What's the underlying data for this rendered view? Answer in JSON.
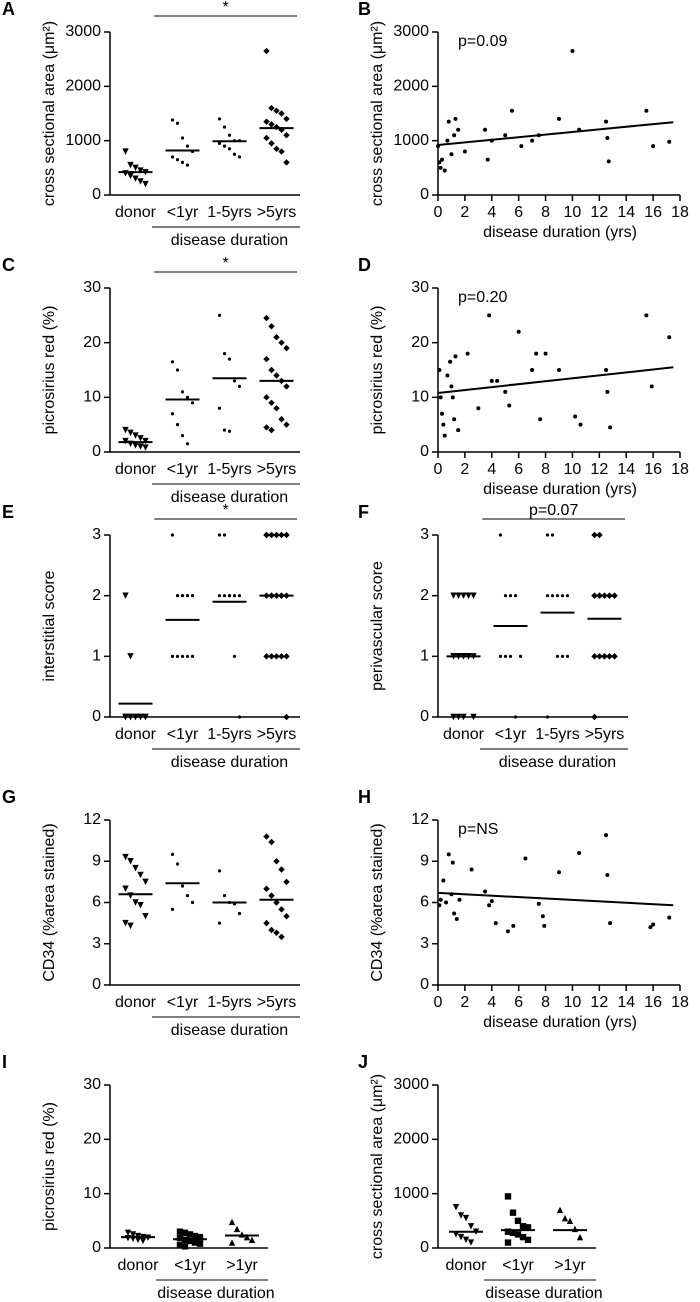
{
  "chart_data": [
    {
      "type": "strip",
      "panel": "A",
      "ylabel": "cross sectional area (μm²)",
      "categories": [
        "donor",
        "<1yr",
        "1-5yrs",
        ">5yrs"
      ],
      "values": [
        [
          800,
          550,
          500,
          450,
          420,
          400,
          350,
          300,
          250,
          200
        ],
        [
          1380,
          1320,
          1050,
          900,
          800,
          700,
          650,
          600,
          550
        ],
        [
          1400,
          1250,
          1100,
          1000,
          1000,
          950,
          900,
          850,
          750,
          700
        ],
        [
          2650,
          1600,
          1550,
          1500,
          1400,
          1350,
          1300,
          1250,
          1200,
          1100,
          1050,
          950,
          850,
          800,
          600
        ]
      ],
      "means": [
        420,
        820,
        990,
        1230
      ],
      "markers": [
        "triangle-down",
        "dot",
        "dot",
        "diamond"
      ],
      "ylim": [
        0,
        3000
      ],
      "yticks": [
        0,
        1000,
        2000,
        3000
      ],
      "significance": "*",
      "group_label": "disease duration"
    },
    {
      "type": "scatter",
      "panel": "B",
      "ylabel": "cross sectional area (μm²)",
      "xlabel": "disease duration (yrs)",
      "x": [
        0,
        0.1,
        0.2,
        0.3,
        0.5,
        0.7,
        0.8,
        1,
        1.2,
        1.3,
        1.5,
        2,
        3.5,
        3.7,
        4,
        5,
        5.5,
        6.2,
        7,
        7.5,
        9,
        10,
        10.5,
        12.5,
        12.6,
        12.7,
        15.5,
        16,
        17.2
      ],
      "y": [
        900,
        600,
        500,
        650,
        450,
        1000,
        1350,
        750,
        1100,
        1400,
        1200,
        800,
        1200,
        650,
        1000,
        1100,
        1550,
        900,
        1000,
        1100,
        1400,
        2650,
        1200,
        1350,
        1050,
        620,
        1550,
        900,
        980
      ],
      "fit": {
        "x": [
          0,
          17.5
        ],
        "y": [
          920,
          1340
        ]
      },
      "annotation": "p=0.09",
      "xlim": [
        0,
        18
      ],
      "xticks": [
        0,
        2,
        4,
        6,
        8,
        10,
        12,
        14,
        16,
        18
      ],
      "ylim": [
        0,
        3000
      ],
      "yticks": [
        0,
        1000,
        2000,
        3000
      ]
    },
    {
      "type": "strip",
      "panel": "C",
      "ylabel": "picrosirius red (%)",
      "categories": [
        "donor",
        "<1yr",
        "1-5yrs",
        ">5yrs"
      ],
      "values": [
        [
          4,
          3.5,
          3,
          2.5,
          2,
          2,
          1.5,
          1.2,
          1,
          0.8
        ],
        [
          16.5,
          15,
          11,
          10,
          9,
          7,
          5,
          3,
          1.5
        ],
        [
          25,
          18,
          17,
          13,
          12,
          8,
          4,
          3.8
        ],
        [
          24.5,
          23,
          21,
          20,
          19,
          17,
          15,
          14,
          13,
          12,
          10,
          9,
          8,
          6,
          5,
          4.5,
          4
        ]
      ],
      "means": [
        1.8,
        9.6,
        13.5,
        13
      ],
      "markers": [
        "triangle-down",
        "dot",
        "dot",
        "diamond"
      ],
      "ylim": [
        0,
        30
      ],
      "yticks": [
        0,
        10,
        20,
        30
      ],
      "significance": "*",
      "group_label": "disease duration"
    },
    {
      "type": "scatter",
      "panel": "D",
      "ylabel": "picrosirius red (%)",
      "xlabel": "disease duration (yrs)",
      "x": [
        0.1,
        0.2,
        0.3,
        0.4,
        0.5,
        0.7,
        0.9,
        1,
        1.1,
        1.2,
        1.3,
        1.5,
        2.2,
        3,
        3.8,
        4,
        4.4,
        5,
        5.3,
        6,
        7,
        7.3,
        7.6,
        8,
        9,
        10.2,
        10.6,
        12.5,
        12.6,
        12.8,
        15.5,
        15.9,
        17.2
      ],
      "y": [
        15,
        10,
        7,
        5,
        3,
        14,
        16.5,
        12,
        10,
        6,
        17.5,
        4,
        18,
        8,
        25,
        13,
        13,
        11,
        8.5,
        22,
        15,
        18,
        6,
        18,
        15,
        6.5,
        5,
        15,
        11,
        4.5,
        25,
        12,
        21
      ],
      "fit": {
        "x": [
          0,
          17.5
        ],
        "y": [
          10.8,
          15.5
        ]
      },
      "annotation": "p=0.20",
      "xlim": [
        0,
        18
      ],
      "xticks": [
        0,
        2,
        4,
        6,
        8,
        10,
        12,
        14,
        16,
        18
      ],
      "ylim": [
        0,
        30
      ],
      "yticks": [
        0,
        10,
        20,
        30
      ]
    },
    {
      "type": "strip",
      "panel": "E",
      "ylabel": "interstitial score",
      "categories": [
        "donor",
        "<1yr",
        "1-5yrs",
        ">5yrs"
      ],
      "values": [
        [
          2,
          1,
          0,
          0,
          0,
          0,
          0,
          0,
          0,
          0,
          0,
          0
        ],
        [
          3,
          2,
          2,
          2,
          2,
          1,
          1,
          1,
          1,
          1
        ],
        [
          3,
          3,
          2,
          2,
          2,
          2,
          2,
          2,
          1,
          0
        ],
        [
          3,
          3,
          3,
          3,
          3,
          3,
          2,
          2,
          2,
          2,
          2,
          2,
          2,
          2,
          1,
          1,
          1,
          1,
          1,
          0
        ]
      ],
      "means": [
        0.22,
        1.6,
        1.9,
        2.0
      ],
      "markers": [
        "triangle-down",
        "dot",
        "dot",
        "diamond"
      ],
      "ylim": [
        0,
        3
      ],
      "yticks": [
        0,
        1,
        2,
        3
      ],
      "significance": "*",
      "group_label": "disease duration"
    },
    {
      "type": "strip",
      "panel": "F",
      "ylabel": "perivascular score",
      "categories": [
        "donor",
        "<1yr",
        "1-5yrs",
        ">5yrs"
      ],
      "values": [
        [
          2,
          2,
          2,
          2,
          2,
          1,
          1,
          1,
          1,
          1,
          1,
          1,
          1,
          1,
          0,
          0,
          0,
          0
        ],
        [
          3,
          2,
          2,
          2,
          1,
          1,
          1,
          1,
          0
        ],
        [
          3,
          3,
          2,
          2,
          2,
          2,
          2,
          1,
          1,
          1,
          0
        ],
        [
          3,
          3,
          2,
          2,
          2,
          2,
          2,
          2,
          2,
          2,
          2,
          2,
          1,
          1,
          1,
          1,
          1,
          1,
          1,
          1,
          0
        ]
      ],
      "means": [
        1.0,
        1.5,
        1.72,
        1.62
      ],
      "markers": [
        "triangle-down",
        "dot",
        "dot",
        "diamond"
      ],
      "ylim": [
        0,
        3
      ],
      "yticks": [
        0,
        1,
        2,
        3
      ],
      "significance": "p=0.07",
      "group_label": "disease duration"
    },
    {
      "type": "strip",
      "panel": "G",
      "ylabel": "CD34 (%area stained)",
      "categories": [
        "donor",
        "<1yr",
        "1-5yrs",
        ">5yrs"
      ],
      "values": [
        [
          9.3,
          9,
          8.5,
          8,
          7.5,
          7,
          6.5,
          6,
          5.8,
          5,
          4.5,
          4.3
        ],
        [
          9.5,
          8.8,
          7.2,
          6.5,
          6,
          5.5
        ],
        [
          8.3,
          6.5,
          6,
          5.9,
          5.2,
          4.5
        ],
        [
          10.8,
          10.4,
          9,
          8.4,
          7.5,
          7,
          6.5,
          6,
          5.5,
          5,
          4.5,
          4,
          3.8,
          3.5
        ]
      ],
      "means": [
        6.6,
        7.4,
        6.0,
        6.2
      ],
      "markers": [
        "triangle-down",
        "dot",
        "dot",
        "diamond"
      ],
      "ylim": [
        0,
        12
      ],
      "yticks": [
        0,
        3,
        6,
        9,
        12
      ],
      "group_label": "disease duration"
    },
    {
      "type": "scatter",
      "panel": "H",
      "ylabel": "CD34 (%area stained)",
      "xlabel": "disease duration (yrs)",
      "x": [
        0.1,
        0.2,
        0.4,
        0.6,
        0.8,
        1,
        1.1,
        1.2,
        1.4,
        1.6,
        2.5,
        3.5,
        3.8,
        4,
        4.3,
        5.2,
        5.6,
        6.5,
        7.5,
        7.8,
        7.9,
        9,
        10.5,
        12.5,
        12.6,
        12.8,
        15.8,
        16,
        17.2
      ],
      "y": [
        5.8,
        6.2,
        7.6,
        6,
        9.5,
        6.6,
        8.9,
        5.2,
        4.8,
        6.2,
        8.4,
        6.8,
        5.8,
        6.1,
        4.5,
        3.9,
        4.3,
        9.2,
        5.9,
        5,
        4.3,
        8.2,
        9.6,
        10.9,
        8,
        4.5,
        4.2,
        4.4,
        4.9
      ],
      "fit": {
        "x": [
          0,
          17.5
        ],
        "y": [
          6.7,
          5.8
        ]
      },
      "annotation": "p=NS",
      "xlim": [
        0,
        18
      ],
      "xticks": [
        0,
        2,
        4,
        6,
        8,
        10,
        12,
        14,
        16,
        18
      ],
      "ylim": [
        0,
        12
      ],
      "yticks": [
        0,
        3,
        6,
        9,
        12
      ]
    },
    {
      "type": "strip",
      "panel": "I",
      "ylabel": "picrosirius red (%)",
      "categories": [
        "donor",
        "<1yr",
        ">1yr"
      ],
      "values": [
        [
          2.8,
          2.5,
          2.2,
          2,
          1.9,
          1.8,
          1.7,
          1.5,
          1.3
        ],
        [
          3,
          2.8,
          2.5,
          2.2,
          2,
          1.8,
          1.5,
          1.3,
          1,
          0.8,
          0.5,
          0.3
        ],
        [
          4.8,
          3.5,
          2.5,
          2,
          1.5,
          1
        ]
      ],
      "means": [
        2,
        1.6,
        2.3
      ],
      "markers": [
        "triangle-down",
        "square",
        "triangle-up"
      ],
      "ylim": [
        0,
        30
      ],
      "yticks": [
        0,
        10,
        20,
        30
      ],
      "group_label": "disease duration"
    },
    {
      "type": "strip",
      "panel": "J",
      "ylabel": "cross sectional area (μm²)",
      "categories": [
        "donor",
        "<1yr",
        ">1yr"
      ],
      "values": [
        [
          750,
          600,
          550,
          400,
          300,
          250,
          200,
          150,
          100
        ],
        [
          950,
          650,
          500,
          400,
          380,
          300,
          280,
          250,
          200,
          150,
          100
        ],
        [
          700,
          550,
          500,
          350,
          200
        ]
      ],
      "means": [
        300,
        330,
        330
      ],
      "markers": [
        "triangle-down",
        "square",
        "triangle-up"
      ],
      "ylim": [
        0,
        3000
      ],
      "yticks": [
        0,
        1000,
        2000,
        3000
      ],
      "group_label": "disease duration"
    }
  ]
}
